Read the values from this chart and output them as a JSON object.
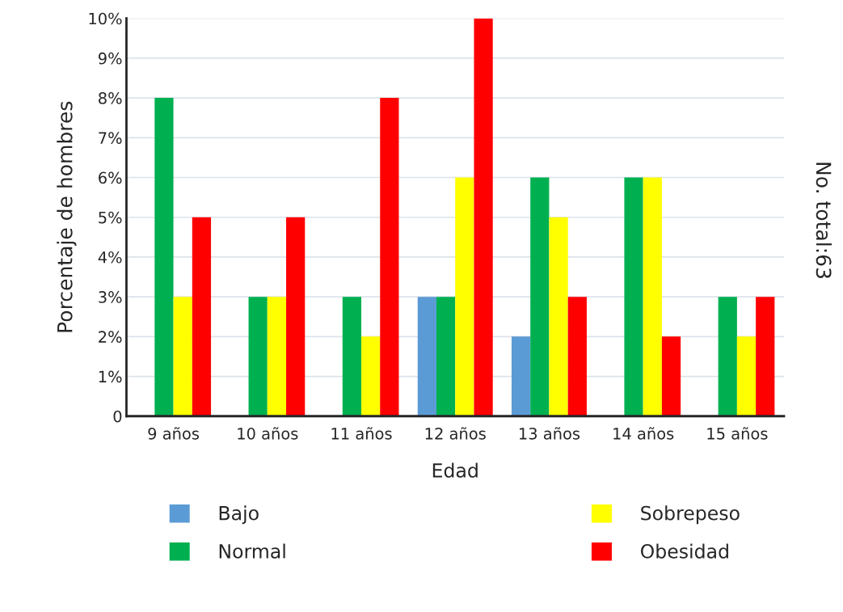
{
  "chart_data": {
    "type": "bar",
    "xlabel": "Edad",
    "ylabel": "Porcentaje de hombres",
    "categories": [
      "9 años",
      "10 años",
      "11 años",
      "12 años",
      "13 años",
      "14 años",
      "15 años"
    ],
    "series": [
      {
        "name": "Bajo",
        "color": "#5b9bd5",
        "values": [
          0,
          0,
          0,
          3,
          2,
          0,
          0
        ]
      },
      {
        "name": "Normal",
        "color": "#00b050",
        "values": [
          8,
          3,
          3,
          3,
          6,
          6,
          3
        ]
      },
      {
        "name": "Sobrepeso",
        "color": "#ffff00",
        "values": [
          3,
          3,
          2,
          6,
          5,
          6,
          2
        ]
      },
      {
        "name": "Obesidad",
        "color": "#ff0000",
        "values": [
          5,
          5,
          8,
          10,
          3,
          2,
          3
        ]
      }
    ],
    "ylim": [
      0,
      10
    ],
    "yticks": [
      0,
      {
        "value": 1,
        "label": "1%"
      },
      {
        "value": 2,
        "label": "2%"
      },
      {
        "value": 3,
        "label": "3%"
      },
      {
        "value": 4,
        "label": "4%"
      },
      {
        "value": 5,
        "label": "5%"
      },
      {
        "value": 6,
        "label": "6%"
      },
      {
        "value": 7,
        "label": "7%"
      },
      {
        "value": 8,
        "label": "8%"
      },
      {
        "value": 9,
        "label": "9%"
      },
      {
        "value": 10,
        "label": "10%"
      }
    ],
    "grid": "y",
    "legend": "bottom",
    "annotations": [
      "No. total:63"
    ]
  }
}
